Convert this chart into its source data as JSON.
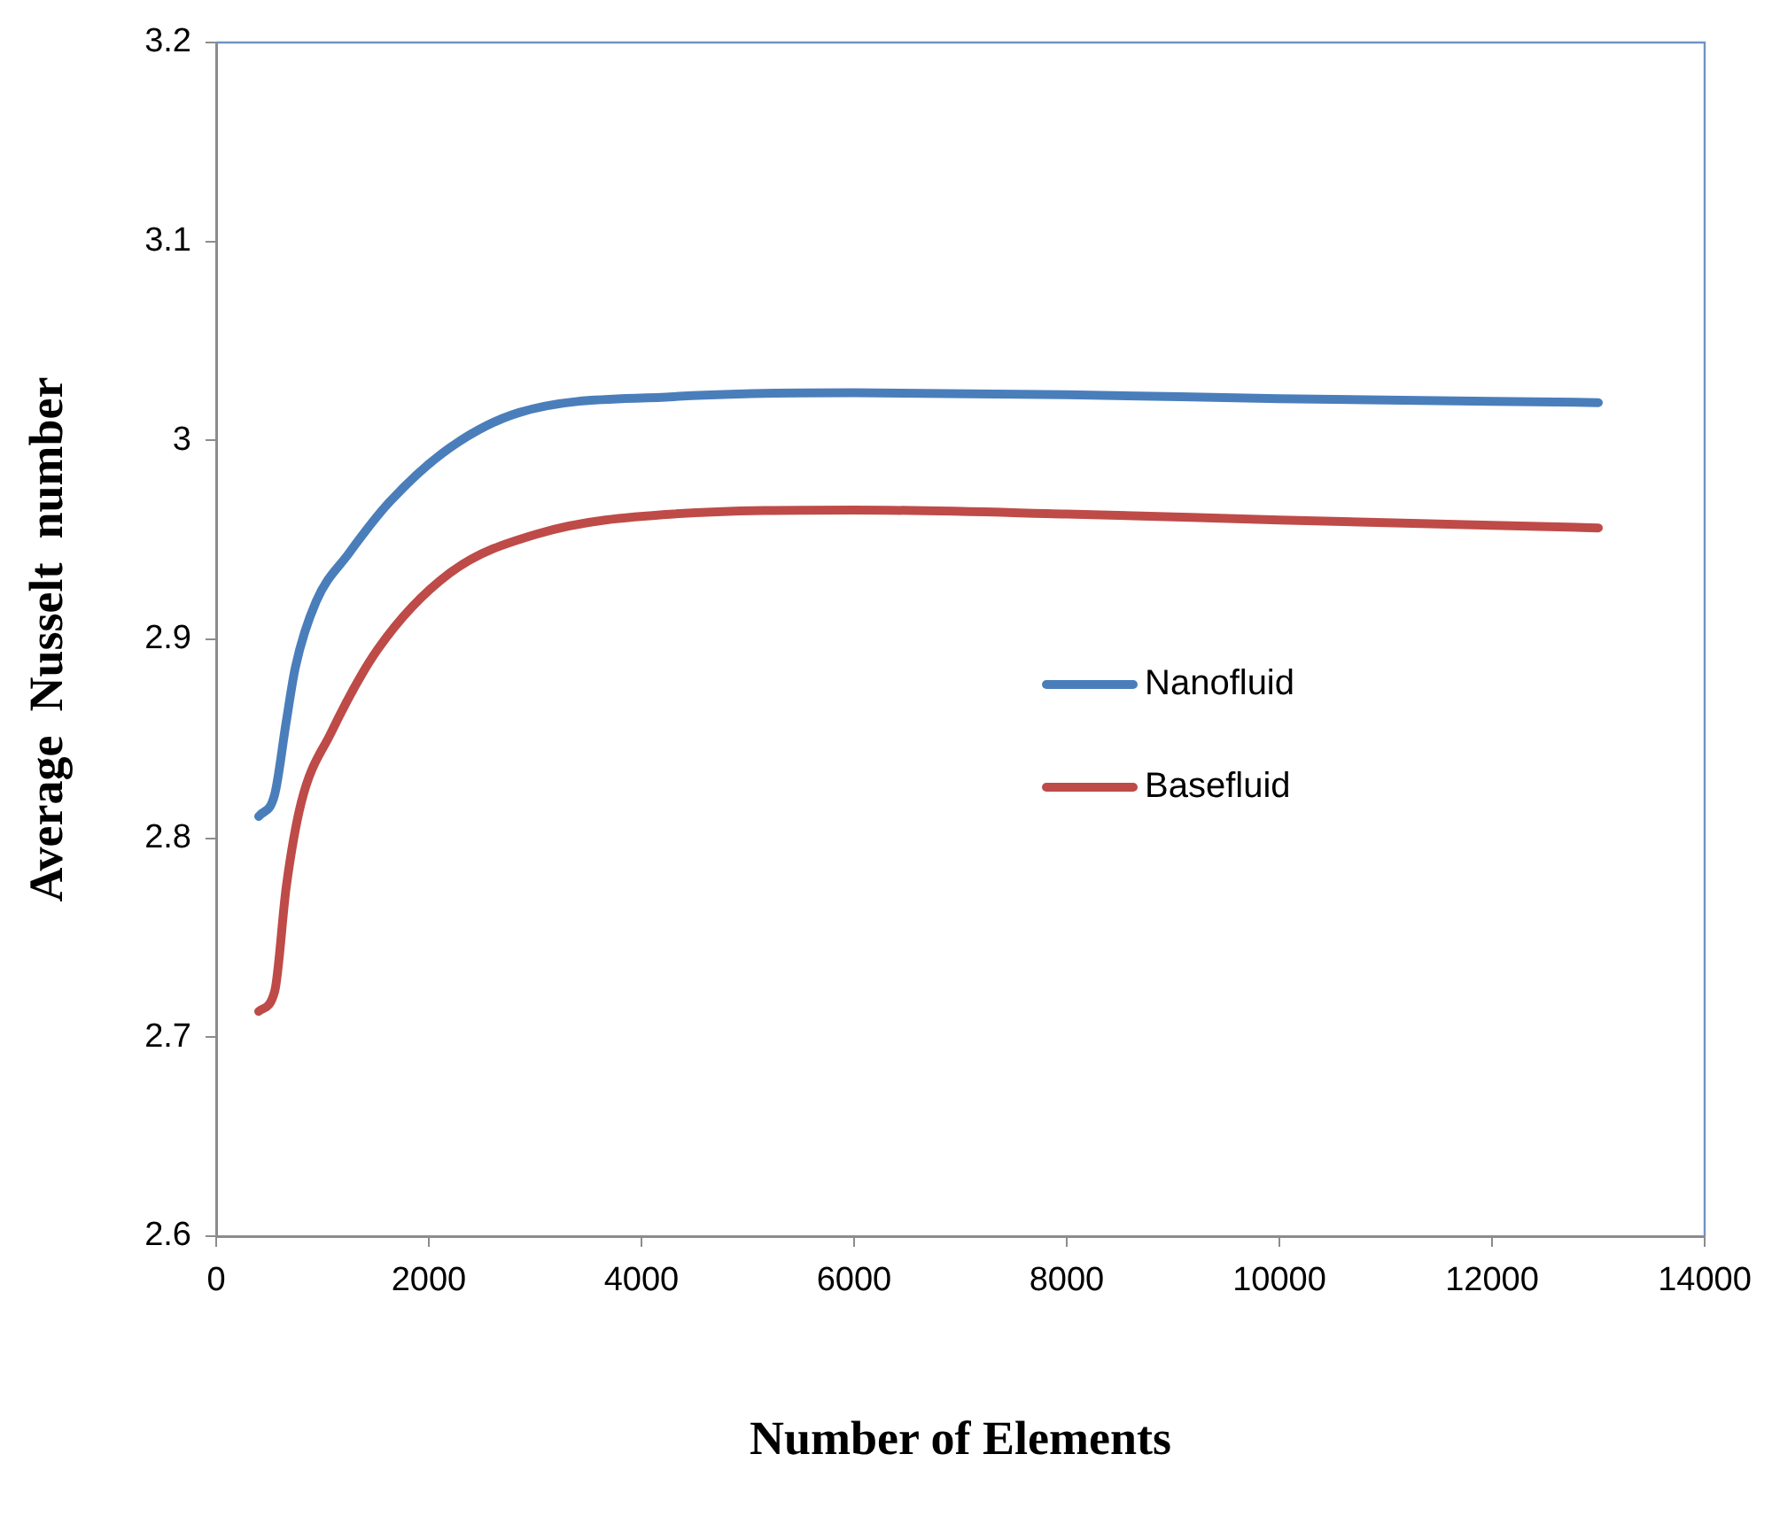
{
  "chart_data": {
    "type": "line",
    "xlabel": "Number of Elements",
    "ylabel": "Average  Nusselt  number",
    "xlim": [
      0,
      14000
    ],
    "xticks": [
      0,
      2000,
      4000,
      6000,
      8000,
      10000,
      12000,
      14000
    ],
    "ylim": [
      2.6,
      3.2
    ],
    "yticks": [
      2.6,
      2.7,
      2.8,
      2.9,
      3,
      3.1,
      3.2
    ],
    "grid": false,
    "legend": "right",
    "marker": "none",
    "line_style": "solid",
    "series": [
      {
        "name": "Nanofluid",
        "color": "#4a7ebb",
        "x": [
          400,
          550,
          660,
          745,
          940,
          1245,
          1630,
          2190,
          2850,
          4300,
          6000,
          8000,
          10000,
          13000
        ],
        "values": [
          2.811,
          2.822,
          2.859,
          2.886,
          2.919,
          2.943,
          2.969,
          2.996,
          3.014,
          3.022,
          3.024,
          3.023,
          3.021,
          3.019
        ]
      },
      {
        "name": "Basefluid",
        "color": "#be4b48",
        "x": [
          400,
          550,
          660,
          800,
          1080,
          1520,
          2190,
          3020,
          4300,
          6000,
          8000,
          10000,
          13000
        ],
        "values": [
          2.713,
          2.723,
          2.776,
          2.818,
          2.853,
          2.895,
          2.933,
          2.953,
          2.963,
          2.965,
          2.963,
          2.96,
          2.956
        ]
      }
    ]
  }
}
